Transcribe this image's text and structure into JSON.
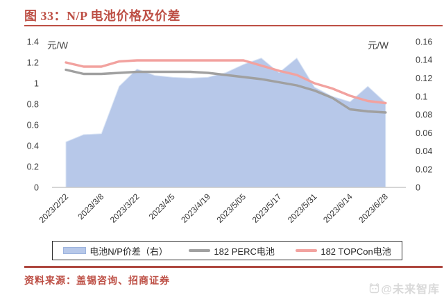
{
  "title": {
    "text": "图 33：N/P 电池价格及价差"
  },
  "source": {
    "text": "资料来源：盖锡咨询、招商证券"
  },
  "watermark": {
    "text": "@未来智库"
  },
  "colors": {
    "title_red": "#bd4f45",
    "divider_red": "#ad463e",
    "axis_text": "#404040",
    "axis_line": "#c8c8c8",
    "legend_border": "#2f2f2f",
    "watermark_gray": "#d9d9d9"
  },
  "chart_data": {
    "type": "combo_area_line",
    "title": "N/P 电池价格及价差",
    "left_axis": {
      "unit_label": "元/W",
      "range": [
        0,
        1.4
      ],
      "tick_labels": [
        "0",
        "0.2",
        "0.4",
        "0.6",
        "0.8",
        "1",
        "1.2",
        "1.4"
      ]
    },
    "right_axis": {
      "unit_label": "元/W",
      "range": [
        0,
        0.16
      ],
      "tick_labels": [
        "0",
        "0.02",
        "0.04",
        "0.06",
        "0.08",
        "0.1",
        "0.12",
        "0.14",
        "0.16"
      ]
    },
    "n_points": 19,
    "x_tick_labels": [
      "2023/2/22",
      "2023/3/8",
      "2023/3/22",
      "2023/4/5",
      "2023/4/19",
      "2023/5/05",
      "2023/5/17",
      "2023/5/31",
      "2023/6/14",
      "2023/6/28"
    ],
    "x_tick_point_indices": [
      0,
      2,
      4,
      6,
      8,
      10,
      12,
      14,
      16,
      18
    ],
    "grid": false,
    "legend_position": "bottom",
    "series": [
      {
        "name": "电池N/P价差（右）",
        "type": "area",
        "axis": "right",
        "color": "#b7c8e9",
        "edge_color": "#dce6f5",
        "values": [
          0.05,
          0.058,
          0.059,
          0.111,
          0.13,
          0.123,
          0.121,
          0.12,
          0.121,
          0.126,
          0.135,
          0.142,
          0.126,
          0.142,
          0.11,
          0.1,
          0.094,
          0.111,
          0.093
        ]
      },
      {
        "name": "182 PERC电池",
        "type": "line",
        "axis": "left",
        "color": "#a0a0a0",
        "values": [
          1.13,
          1.09,
          1.09,
          1.1,
          1.11,
          1.11,
          1.11,
          1.11,
          1.1,
          1.08,
          1.06,
          1.04,
          1.01,
          0.98,
          0.93,
          0.86,
          0.75,
          0.73,
          0.72
        ]
      },
      {
        "name": "182 TOPCon电池",
        "type": "line",
        "axis": "left",
        "color": "#f2a29f",
        "values": [
          1.2,
          1.16,
          1.16,
          1.21,
          1.22,
          1.22,
          1.22,
          1.22,
          1.22,
          1.22,
          1.22,
          1.17,
          1.12,
          1.08,
          1.0,
          0.95,
          0.88,
          0.83,
          0.81
        ]
      }
    ]
  }
}
